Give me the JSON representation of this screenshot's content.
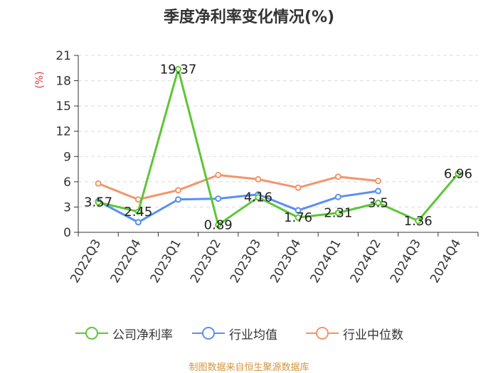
{
  "title": "季度净利率变化情况(%)",
  "source": "制图数据来自恒生聚源数据库",
  "chart_data": {
    "type": "line",
    "title": "季度净利率变化情况(%)",
    "ylabel": "(%)",
    "xlabel": "",
    "ylim": [
      0,
      21
    ],
    "yticks": [
      "0",
      "3",
      "6",
      "9",
      "12",
      "15",
      "18",
      "21"
    ],
    "categories": [
      "2022Q3",
      "2022Q4",
      "2023Q1",
      "2023Q2",
      "2023Q3",
      "2023Q4",
      "2024Q1",
      "2024Q2",
      "2024Q3",
      "2024Q4"
    ],
    "grid": true,
    "legend_position": "bottom",
    "series": [
      {
        "name": "公司净利率",
        "color": "#5cc635",
        "values": [
          3.57,
          2.45,
          19.37,
          0.89,
          4.16,
          1.76,
          2.31,
          3.5,
          1.36,
          6.96
        ],
        "labels": [
          "3.57",
          "2.45",
          "19.37",
          "0.89",
          "4.16",
          "1.76",
          "2.31",
          "3.5",
          "1.36",
          "6.96"
        ]
      },
      {
        "name": "行业均值",
        "color": "#5b8ff0",
        "values": [
          3.7,
          1.2,
          3.9,
          4.0,
          4.5,
          2.6,
          4.2,
          4.9,
          null,
          null
        ]
      },
      {
        "name": "行业中位数",
        "color": "#f4946a",
        "values": [
          5.8,
          3.9,
          5.0,
          6.8,
          6.3,
          5.3,
          6.6,
          6.1,
          null,
          null
        ]
      }
    ]
  }
}
